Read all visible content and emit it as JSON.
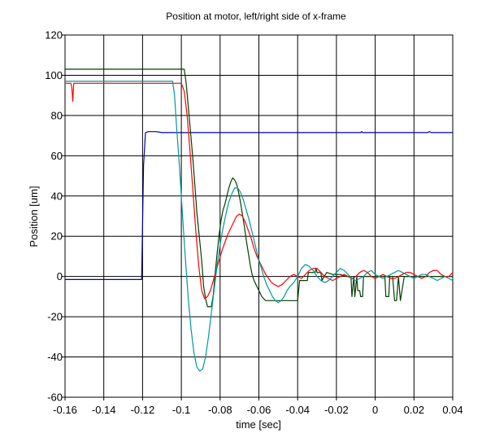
{
  "chart_data": {
    "type": "line",
    "title": "Position at motor, left/right side of x-frame",
    "xlabel": "time [sec]",
    "ylabel": "Position [um]",
    "xlim": [
      -0.16,
      0.04
    ],
    "ylim": [
      -60,
      120
    ],
    "grid": true,
    "x_ticks": [
      -0.16,
      -0.14,
      -0.12,
      -0.1,
      -0.08,
      -0.06,
      -0.04,
      -0.02,
      0,
      0.02,
      0.04
    ],
    "x_tick_labels": [
      "-0.16",
      "-0.14",
      "-0.12",
      "-0.1",
      "-0.08",
      "-0.06",
      "-0.04",
      "-0.02",
      "0",
      "0.02",
      "0.04"
    ],
    "y_ticks": [
      -60,
      -40,
      -20,
      0,
      20,
      40,
      60,
      80,
      100,
      120
    ],
    "y_tick_labels": [
      "-60",
      "-40",
      "-20",
      "0",
      "20",
      "40",
      "60",
      "80",
      "100",
      "120"
    ],
    "series": [
      {
        "color": "#0000aa",
        "x": [
          -0.16,
          -0.1205,
          -0.1201,
          -0.1195,
          -0.1185,
          -0.117,
          -0.113,
          -0.11,
          -0.1,
          -0.08,
          -0.05,
          -0.02,
          -0.0075,
          -0.007,
          -0.0065,
          0.02,
          0.027,
          0.028,
          0.029,
          0.04
        ],
        "y": [
          -1.5,
          -1.5,
          20,
          55,
          71.5,
          72,
          72,
          71.5,
          71.5,
          71.5,
          71.5,
          71.5,
          71.5,
          72,
          71.5,
          71.5,
          71.5,
          72,
          71.5,
          71.5
        ]
      },
      {
        "color": "#004000",
        "x": [
          -0.16,
          -0.0985,
          -0.0975,
          -0.096,
          -0.094,
          -0.092,
          -0.0895,
          -0.0885,
          -0.0875,
          -0.0865,
          -0.0855,
          -0.0845,
          -0.0835,
          -0.0825,
          -0.0815,
          -0.0805,
          -0.0795,
          -0.0785,
          -0.0775,
          -0.0765,
          -0.0755,
          -0.0745,
          -0.0735,
          -0.0725,
          -0.0715,
          -0.0705,
          -0.0695,
          -0.0685,
          -0.0675,
          -0.0665,
          -0.0655,
          -0.0645,
          -0.0635,
          -0.0625,
          -0.0615,
          -0.0605,
          -0.0595,
          -0.0585,
          -0.0575,
          -0.0565,
          -0.0555,
          -0.0545,
          -0.0535,
          -0.0525,
          -0.0515,
          -0.0505,
          -0.0495,
          -0.0485,
          -0.0475,
          -0.0465,
          -0.0455,
          -0.0445,
          -0.0435,
          -0.0425,
          -0.0415,
          -0.04,
          -0.039,
          -0.035,
          -0.0345,
          -0.034,
          -0.031,
          -0.0305,
          -0.03,
          -0.028,
          -0.0275,
          -0.025,
          -0.022,
          -0.018,
          -0.015,
          -0.0125,
          -0.012,
          -0.011,
          -0.0105,
          -0.0095,
          -0.009,
          -0.008,
          -0.0075,
          -0.0065,
          -0.006,
          -0.004,
          0.0,
          0.003,
          0.005,
          0.0055,
          0.007,
          0.0075,
          0.009,
          0.01,
          0.011,
          0.012,
          0.013,
          0.015,
          0.019,
          0.023,
          0.027,
          0.031,
          0.035,
          0.04
        ],
        "y": [
          103,
          103,
          96,
          80,
          58,
          32,
          8,
          -5,
          -11,
          -15,
          -15,
          -15,
          -9,
          2,
          12,
          21,
          28,
          33,
          36,
          40,
          44,
          47,
          49,
          48,
          46,
          42,
          37,
          31,
          25,
          18,
          12,
          6,
          1,
          -2,
          -4,
          -6,
          -8,
          -10,
          -11,
          -12,
          -12,
          -12,
          -12,
          -12,
          -12,
          -12,
          -12,
          -12,
          -12,
          -12,
          -12,
          -12,
          -12,
          -12,
          -12,
          -12,
          -2,
          -2,
          2,
          2,
          2,
          4,
          2,
          2,
          -2,
          2,
          1,
          1,
          0,
          0,
          -10,
          0,
          -10,
          0,
          -7,
          -7,
          -10,
          -10,
          0,
          0,
          0,
          0,
          0,
          -10,
          -10,
          0,
          0,
          -12,
          -12,
          0,
          -12,
          0,
          0,
          0,
          0,
          0,
          0,
          0
        ]
      },
      {
        "color": "#ff0000",
        "x": [
          -0.16,
          -0.157,
          -0.1565,
          -0.156,
          -0.1555,
          -0.1,
          -0.0985,
          -0.097,
          -0.0955,
          -0.094,
          -0.0925,
          -0.091,
          -0.0895,
          -0.088,
          -0.0865,
          -0.085,
          -0.0835,
          -0.082,
          -0.0805,
          -0.079,
          -0.0775,
          -0.076,
          -0.0745,
          -0.073,
          -0.0715,
          -0.07,
          -0.0685,
          -0.067,
          -0.0655,
          -0.064,
          -0.0625,
          -0.061,
          -0.0595,
          -0.058,
          -0.0565,
          -0.055,
          -0.0535,
          -0.052,
          -0.05,
          -0.048,
          -0.046,
          -0.044,
          -0.042,
          -0.04,
          -0.038,
          -0.036,
          -0.034,
          -0.032,
          -0.03,
          -0.028,
          -0.026,
          -0.024,
          -0.022,
          -0.02,
          -0.018,
          -0.016,
          -0.014,
          -0.012,
          -0.01,
          -0.008,
          -0.006,
          -0.004,
          -0.002,
          0.0,
          0.002,
          0.004,
          0.006,
          0.008,
          0.01,
          0.012,
          0.014,
          0.016,
          0.018,
          0.02,
          0.022,
          0.024,
          0.026,
          0.028,
          0.03,
          0.032,
          0.034,
          0.036,
          0.038,
          0.04
        ],
        "y": [
          96,
          96,
          94,
          87,
          96,
          96,
          92,
          80,
          62,
          42,
          22,
          5,
          -7,
          -11,
          -10,
          -7,
          -2,
          3,
          8,
          13,
          17,
          21,
          24,
          27,
          30,
          31,
          30,
          27,
          23,
          19,
          14,
          10,
          7,
          4,
          1,
          -1,
          -3,
          -4,
          -5,
          -4,
          -2,
          0,
          1,
          0,
          -1,
          1,
          3,
          4,
          4,
          2,
          0,
          -1,
          -2,
          -1,
          0,
          1,
          0,
          -1,
          0,
          2,
          3,
          2,
          0,
          -1,
          0,
          1,
          0,
          -1,
          -1,
          0,
          1,
          2,
          2,
          1,
          0,
          -1,
          0,
          2,
          3,
          3,
          1,
          0,
          0,
          2
        ]
      },
      {
        "color": "#009999",
        "x": [
          -0.16,
          -0.1045,
          -0.1035,
          -0.1025,
          -0.101,
          -0.0995,
          -0.098,
          -0.0965,
          -0.095,
          -0.0935,
          -0.092,
          -0.0905,
          -0.089,
          -0.0875,
          -0.086,
          -0.0845,
          -0.083,
          -0.0815,
          -0.08,
          -0.0785,
          -0.077,
          -0.0755,
          -0.074,
          -0.0725,
          -0.071,
          -0.0695,
          -0.068,
          -0.0665,
          -0.065,
          -0.0635,
          -0.062,
          -0.0605,
          -0.059,
          -0.0575,
          -0.056,
          -0.0545,
          -0.053,
          -0.0515,
          -0.05,
          -0.0485,
          -0.047,
          -0.0455,
          -0.044,
          -0.042,
          -0.04,
          -0.038,
          -0.036,
          -0.034,
          -0.032,
          -0.03,
          -0.028,
          -0.026,
          -0.024,
          -0.022,
          -0.02,
          -0.018,
          -0.016,
          -0.014,
          -0.012,
          -0.01,
          -0.008,
          -0.006,
          -0.004,
          -0.002,
          0.0,
          0.002,
          0.004,
          0.006,
          0.008,
          0.01,
          0.012,
          0.014,
          0.016,
          0.018,
          0.02,
          0.022,
          0.024,
          0.026,
          0.028,
          0.03,
          0.032,
          0.034,
          0.036,
          0.038,
          0.04
        ],
        "y": [
          97,
          97,
          90,
          75,
          55,
          32,
          10,
          -10,
          -26,
          -38,
          -45,
          -47,
          -46,
          -40,
          -30,
          -18,
          -6,
          6,
          16,
          24,
          31,
          37,
          41,
          44,
          44,
          42,
          38,
          33,
          28,
          22,
          16,
          10,
          5,
          0,
          -4,
          -7,
          -10,
          -12,
          -13,
          -12,
          -10,
          -7,
          -5,
          -3,
          0,
          4,
          6,
          5,
          3,
          0,
          -2,
          -3,
          -2,
          0,
          2,
          4,
          3,
          1,
          -1,
          -2,
          -1,
          0,
          2,
          3,
          1,
          0,
          -1,
          0,
          1,
          2,
          3,
          2,
          1,
          0,
          -1,
          0,
          1,
          1,
          0,
          -1,
          -2,
          -1,
          0,
          -1,
          -2
        ]
      }
    ]
  }
}
